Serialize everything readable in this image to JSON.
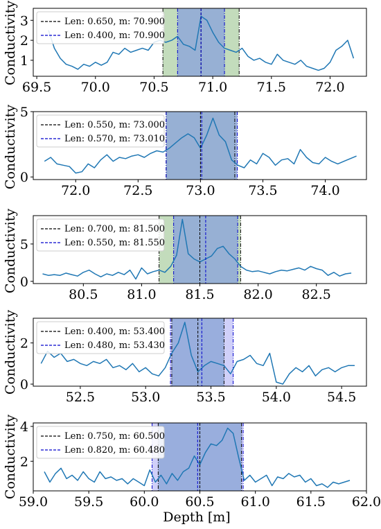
{
  "figure": {
    "xlabel": "Depth [m]",
    "ylabel": "Conductivity"
  },
  "chart_data": [
    {
      "type": "line",
      "xlim": [
        69.47,
        72.31
      ],
      "ylim": [
        0.2,
        3.6
      ],
      "xticks": [
        69.5,
        70.0,
        70.5,
        71.0,
        71.5,
        72.0
      ],
      "xtick_labels": [
        "69.5",
        "70.0",
        "70.5",
        "71.0",
        "71.5",
        "72.0"
      ],
      "yticks": [
        1,
        2,
        3
      ],
      "ytick_labels": [
        "1",
        "2",
        "3"
      ],
      "legend": [
        "Len: 0.650, m: 70.900",
        "Len: 0.400, m: 70.900"
      ],
      "bands": [
        {
          "from": 70.575,
          "to": 71.225,
          "color": "#b8d6b0",
          "edge": "#000000"
        },
        {
          "from": 70.7,
          "to": 71.1,
          "color": "#8fa8d8",
          "edge": "#0000cc"
        }
      ],
      "center_lines": [
        {
          "x": 70.9,
          "color": "#000000"
        },
        {
          "x": 70.9,
          "color": "#0000cc"
        }
      ],
      "x": [
        69.6,
        69.65,
        69.7,
        69.75,
        69.8,
        69.85,
        69.9,
        69.95,
        70.0,
        70.05,
        70.1,
        70.15,
        70.2,
        70.25,
        70.3,
        70.35,
        70.4,
        70.45,
        70.5,
        70.55,
        70.6,
        70.65,
        70.7,
        70.75,
        70.8,
        70.85,
        70.9,
        70.95,
        71.0,
        71.05,
        71.1,
        71.15,
        71.2,
        71.25,
        71.3,
        71.35,
        71.4,
        71.45,
        71.5,
        71.55,
        71.6,
        71.65,
        71.7,
        71.75,
        71.8,
        71.85,
        71.9,
        71.95,
        72.0,
        72.05,
        72.1,
        72.15,
        72.2
      ],
      "y": [
        2.5,
        1.6,
        1.1,
        0.8,
        0.7,
        0.55,
        0.8,
        0.7,
        0.9,
        0.75,
        0.9,
        1.4,
        1.3,
        1.6,
        1.4,
        1.5,
        1.6,
        1.5,
        1.9,
        2.0,
        1.9,
        2.0,
        2.2,
        1.8,
        1.7,
        1.5,
        3.2,
        3.0,
        2.4,
        1.9,
        1.6,
        1.5,
        1.4,
        1.6,
        1.2,
        1.0,
        1.1,
        0.9,
        0.8,
        1.3,
        1.0,
        0.9,
        0.8,
        1.0,
        0.7,
        0.6,
        0.5,
        0.6,
        0.9,
        1.5,
        1.7,
        2.0,
        1.1
      ]
    },
    {
      "type": "line",
      "xlim": [
        71.66,
        74.33
      ],
      "ylim": [
        -0.2,
        5.0
      ],
      "xticks": [
        72.0,
        72.5,
        73.0,
        73.5,
        74.0
      ],
      "xtick_labels": [
        "72.0",
        "72.5",
        "73.0",
        "73.5",
        "74.0"
      ],
      "yticks": [
        0,
        5
      ],
      "ytick_labels": [
        "0",
        "5"
      ],
      "legend": [
        "Len: 0.550, m: 73.000",
        "Len: 0.570, m: 73.010"
      ],
      "bands": [
        {
          "from": 72.725,
          "to": 73.275,
          "color": "#b8d6b0",
          "edge": "#000000"
        },
        {
          "from": 72.725,
          "to": 73.295,
          "color": "#8fa8d8",
          "edge": "#0000cc"
        }
      ],
      "center_lines": [
        {
          "x": 73.0,
          "color": "#000000"
        },
        {
          "x": 73.01,
          "color": "#0000cc"
        }
      ],
      "x": [
        71.75,
        71.8,
        71.85,
        71.9,
        71.95,
        72.0,
        72.05,
        72.1,
        72.15,
        72.2,
        72.25,
        72.3,
        72.35,
        72.4,
        72.45,
        72.5,
        72.55,
        72.6,
        72.65,
        72.7,
        72.75,
        72.8,
        72.85,
        72.9,
        72.95,
        73.0,
        73.05,
        73.1,
        73.15,
        73.2,
        73.25,
        73.3,
        73.35,
        73.4,
        73.45,
        73.5,
        73.55,
        73.6,
        73.65,
        73.7,
        73.75,
        73.8,
        73.85,
        73.9,
        73.95,
        74.0,
        74.05,
        74.1,
        74.15,
        74.2,
        74.25
      ],
      "y": [
        1.2,
        1.5,
        1.0,
        0.9,
        0.8,
        0.3,
        0.4,
        1.0,
        0.7,
        1.3,
        1.7,
        1.2,
        1.5,
        1.4,
        1.6,
        1.7,
        1.5,
        1.8,
        2.0,
        1.9,
        2.2,
        2.6,
        3.0,
        3.3,
        3.0,
        2.2,
        3.2,
        4.5,
        3.2,
        2.7,
        1.3,
        0.9,
        0.7,
        1.3,
        1.0,
        1.8,
        1.5,
        0.9,
        1.3,
        1.4,
        1.0,
        2.1,
        1.5,
        1.1,
        1.0,
        1.5,
        1.2,
        1.0,
        1.2,
        1.4,
        1.6
      ]
    },
    {
      "type": "line",
      "xlim": [
        80.07,
        82.93
      ],
      "ylim": [
        -0.3,
        8.8
      ],
      "xticks": [
        80.5,
        81.0,
        81.5,
        82.0,
        82.5
      ],
      "xtick_labels": [
        "80.5",
        "81.0",
        "81.5",
        "82.0",
        "82.5"
      ],
      "yticks": [
        0,
        5
      ],
      "ytick_labels": [
        "0",
        "5"
      ],
      "legend": [
        "Len: 0.700, m: 81.500",
        "Len: 0.550, m: 81.550"
      ],
      "bands": [
        {
          "from": 81.15,
          "to": 81.85,
          "color": "#b8d6b0",
          "edge": "#000000"
        },
        {
          "from": 81.275,
          "to": 81.825,
          "color": "#8fa8d8",
          "edge": "#0000cc"
        }
      ],
      "center_lines": [
        {
          "x": 81.5,
          "color": "#000000"
        },
        {
          "x": 81.55,
          "color": "#0000cc"
        }
      ],
      "x": [
        80.15,
        80.2,
        80.25,
        80.3,
        80.35,
        80.4,
        80.45,
        80.5,
        80.55,
        80.6,
        80.65,
        80.7,
        80.75,
        80.8,
        80.85,
        80.9,
        80.95,
        81.0,
        81.05,
        81.1,
        81.15,
        81.2,
        81.25,
        81.3,
        81.35,
        81.4,
        81.45,
        81.5,
        81.55,
        81.6,
        81.65,
        81.7,
        81.75,
        81.8,
        81.85,
        81.9,
        81.95,
        82.0,
        82.05,
        82.1,
        82.15,
        82.2,
        82.25,
        82.3,
        82.35,
        82.4,
        82.45,
        82.5,
        82.55,
        82.6,
        82.65,
        82.7,
        82.75,
        82.8
      ],
      "y": [
        1.0,
        0.8,
        0.9,
        0.8,
        1.1,
        0.9,
        0.7,
        1.2,
        1.5,
        1.0,
        0.6,
        1.0,
        0.8,
        1.2,
        0.9,
        1.5,
        0.3,
        1.8,
        1.0,
        1.3,
        1.5,
        1.2,
        2.0,
        3.5,
        8.3,
        3.7,
        3.0,
        2.6,
        3.0,
        3.4,
        4.4,
        4.7,
        3.7,
        3.0,
        2.0,
        1.5,
        1.3,
        1.4,
        1.2,
        1.0,
        1.3,
        1.5,
        1.4,
        1.6,
        1.8,
        1.5,
        2.0,
        1.7,
        1.5,
        0.8,
        1.2,
        0.7,
        1.0,
        1.1
      ]
    },
    {
      "type": "line",
      "xlim": [
        52.14,
        54.69
      ],
      "ylim": [
        -0.1,
        3.2
      ],
      "xticks": [
        52.5,
        53.0,
        53.5,
        54.0,
        54.5
      ],
      "xtick_labels": [
        "52.5",
        "53.0",
        "53.5",
        "54.0",
        "54.5"
      ],
      "yticks": [
        0,
        2
      ],
      "ytick_labels": [
        "0",
        "2"
      ],
      "legend": [
        "Len: 0.400, m: 53.400",
        "Len: 0.480, m: 53.430"
      ],
      "bands": [
        {
          "from": 53.19,
          "to": 53.67,
          "color": "#c8c8f8",
          "edge": "#0000cc"
        },
        {
          "from": 53.2,
          "to": 53.6,
          "color": "#8fa8d8",
          "edge": "#000000"
        }
      ],
      "center_lines": [
        {
          "x": 53.4,
          "color": "#000000"
        },
        {
          "x": 53.43,
          "color": "#0000cc"
        }
      ],
      "x": [
        52.2,
        52.25,
        52.3,
        52.35,
        52.4,
        52.45,
        52.5,
        52.55,
        52.6,
        52.65,
        52.7,
        52.75,
        52.8,
        52.85,
        52.9,
        52.95,
        53.0,
        53.05,
        53.1,
        53.15,
        53.2,
        53.25,
        53.3,
        53.35,
        53.4,
        53.45,
        53.5,
        53.55,
        53.6,
        53.65,
        53.7,
        53.75,
        53.8,
        53.85,
        53.9,
        53.95,
        54.0,
        54.05,
        54.1,
        54.15,
        54.2,
        54.25,
        54.3,
        54.35,
        54.4,
        54.45,
        54.5,
        54.55,
        54.6
      ],
      "y": [
        1.0,
        1.6,
        1.3,
        1.5,
        1.1,
        1.2,
        1.0,
        0.9,
        1.1,
        1.0,
        1.2,
        0.8,
        0.9,
        0.7,
        1.0,
        0.6,
        0.8,
        0.5,
        0.4,
        0.8,
        1.5,
        2.0,
        3.0,
        1.4,
        0.6,
        0.9,
        1.1,
        1.0,
        0.9,
        0.5,
        1.1,
        1.2,
        1.4,
        1.0,
        0.9,
        1.5,
        0.1,
        0.0,
        0.5,
        0.8,
        0.6,
        0.9,
        0.4,
        0.7,
        0.8,
        0.6,
        0.8,
        0.9,
        0.9
      ]
    },
    {
      "type": "line",
      "xlim": [
        59.0,
        62.0
      ],
      "ylim": [
        0.3,
        4.2
      ],
      "xticks": [
        59.0,
        59.5,
        60.0,
        60.5,
        61.0,
        61.5,
        62.0
      ],
      "xtick_labels": [
        "59.0",
        "59.5",
        "60.0",
        "60.5",
        "61.0",
        "61.5",
        "62.0"
      ],
      "yticks": [
        2,
        4
      ],
      "ytick_labels": [
        "2",
        "4"
      ],
      "legend": [
        "Len: 0.750, m: 60.500",
        "Len: 0.820, m: 60.480"
      ],
      "bands": [
        {
          "from": 60.07,
          "to": 60.89,
          "color": "#c8c8f8",
          "edge": "#0000cc"
        },
        {
          "from": 60.125,
          "to": 60.875,
          "color": "#8fa8d8",
          "edge": "#000000"
        }
      ],
      "center_lines": [
        {
          "x": 60.5,
          "color": "#000000"
        },
        {
          "x": 60.48,
          "color": "#0000cc"
        }
      ],
      "x": [
        59.1,
        59.15,
        59.2,
        59.25,
        59.3,
        59.35,
        59.4,
        59.45,
        59.5,
        59.55,
        59.6,
        59.65,
        59.7,
        59.75,
        59.8,
        59.85,
        59.9,
        59.95,
        60.0,
        60.05,
        60.1,
        60.15,
        60.2,
        60.25,
        60.3,
        60.35,
        60.4,
        60.45,
        60.5,
        60.55,
        60.6,
        60.65,
        60.7,
        60.75,
        60.8,
        60.85,
        60.9,
        60.95,
        61.0,
        61.05,
        61.1,
        61.15,
        61.2,
        61.25,
        61.3,
        61.35,
        61.4,
        61.45,
        61.5,
        61.55,
        61.6,
        61.65,
        61.7,
        61.75,
        61.8,
        61.85
      ],
      "y": [
        1.4,
        0.8,
        1.3,
        1.6,
        1.0,
        1.2,
        0.9,
        1.4,
        1.0,
        0.8,
        1.4,
        1.0,
        1.1,
        0.9,
        1.0,
        0.7,
        1.0,
        0.8,
        0.6,
        1.5,
        0.8,
        1.2,
        0.7,
        1.3,
        0.9,
        1.4,
        1.6,
        2.3,
        1.8,
        2.5,
        3.0,
        2.9,
        3.2,
        3.9,
        3.6,
        2.2,
        0.9,
        1.2,
        0.8,
        1.0,
        1.2,
        0.6,
        1.1,
        1.0,
        1.3,
        1.1,
        1.2,
        0.8,
        1.0,
        0.6,
        0.7,
        0.5,
        0.8,
        0.7,
        0.8,
        0.9
      ]
    }
  ]
}
